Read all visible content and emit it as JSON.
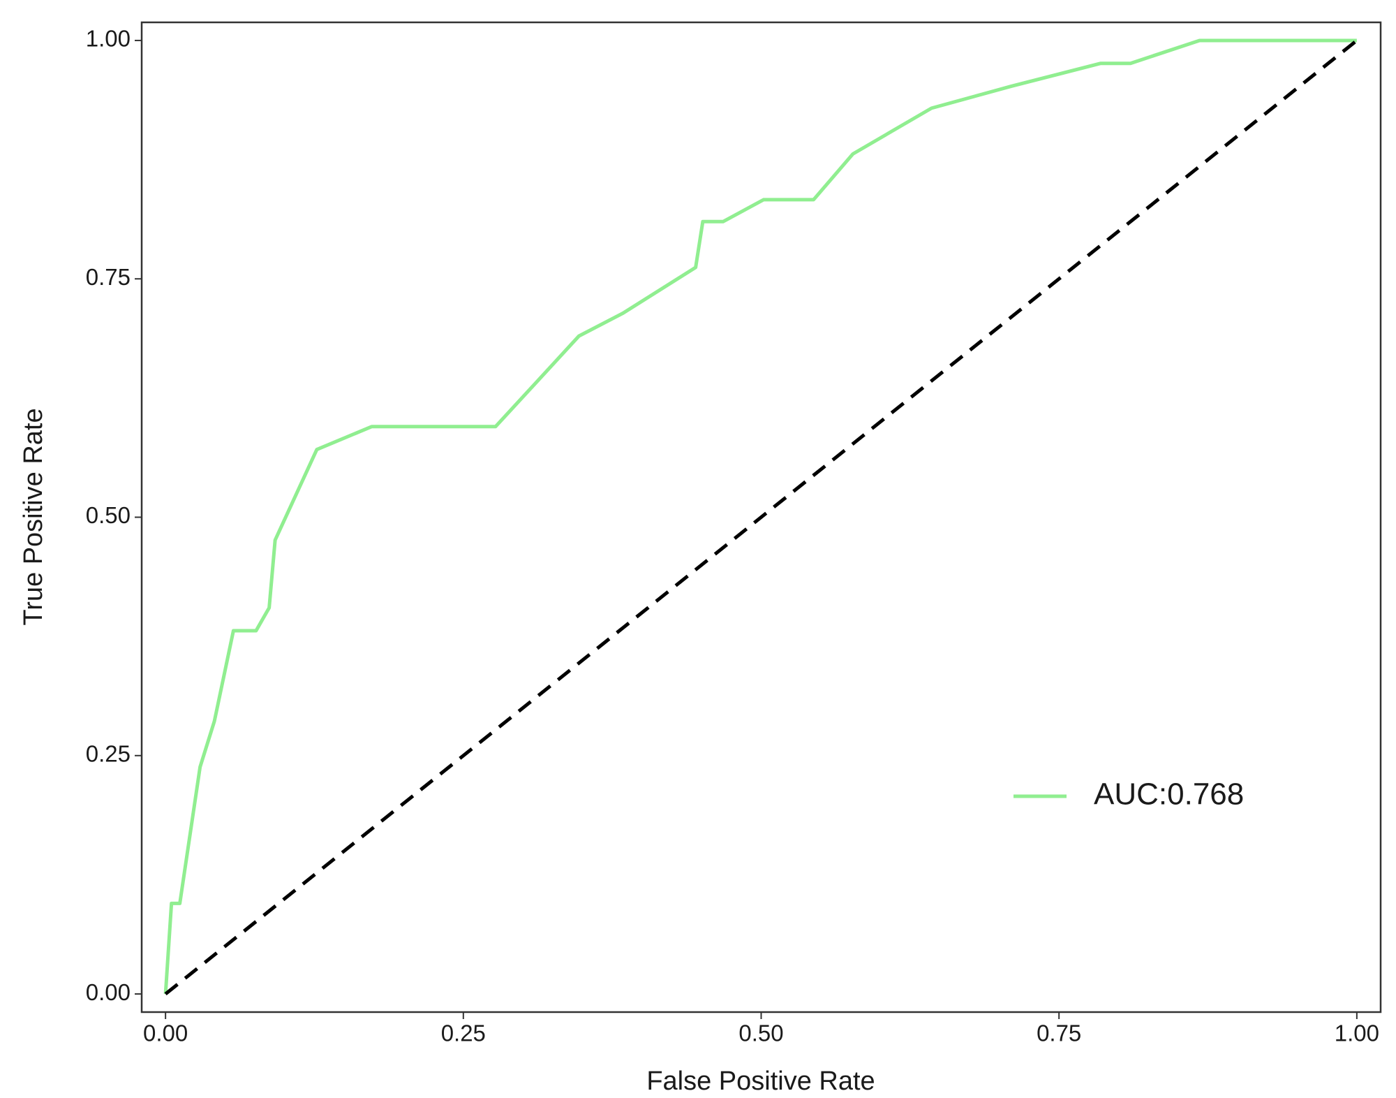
{
  "chart_data": {
    "type": "line",
    "x_label": "False Positive Rate",
    "y_label": "True Positive Rate",
    "xlim": [
      -0.02,
      1.02
    ],
    "ylim": [
      -0.019,
      1.019
    ],
    "xticks": [
      {
        "value": 0,
        "label": "0.00"
      },
      0.25,
      {
        "value": 0.5,
        "label": "0.50"
      },
      0.75,
      {
        "value": 1,
        "label": "1.00"
      }
    ],
    "yticks": [
      {
        "value": 0,
        "label": "0.00"
      },
      0.25,
      {
        "value": 0.5,
        "label": "0.50"
      },
      0.75,
      {
        "value": 1,
        "label": "1.00"
      }
    ],
    "grid": false,
    "legend": "lower-right",
    "series": [
      {
        "name": "AUC:0.768",
        "color": "#90ee90",
        "x": [
          0,
          0.005,
          0.012,
          0.029,
          0.041,
          0.057,
          0.076,
          0.087,
          0.092,
          0.127,
          0.173,
          0.277,
          0.347,
          0.384,
          0.445,
          0.451,
          0.468,
          0.502,
          0.544,
          0.577,
          0.643,
          0.71,
          0.785,
          0.81,
          0.868,
          1
        ],
        "values": [
          0,
          0.095,
          0.095,
          0.238,
          0.286,
          0.381,
          0.381,
          0.405,
          0.476,
          0.571,
          0.595,
          0.595,
          0.69,
          0.714,
          0.762,
          0.81,
          0.81,
          0.833,
          0.833,
          0.881,
          0.929,
          0.952,
          0.976,
          0.976,
          1,
          1
        ]
      }
    ],
    "diagonal": {
      "color": "#000000",
      "dashed": true,
      "x": [
        0,
        1
      ],
      "values": [
        0,
        1
      ]
    }
  }
}
